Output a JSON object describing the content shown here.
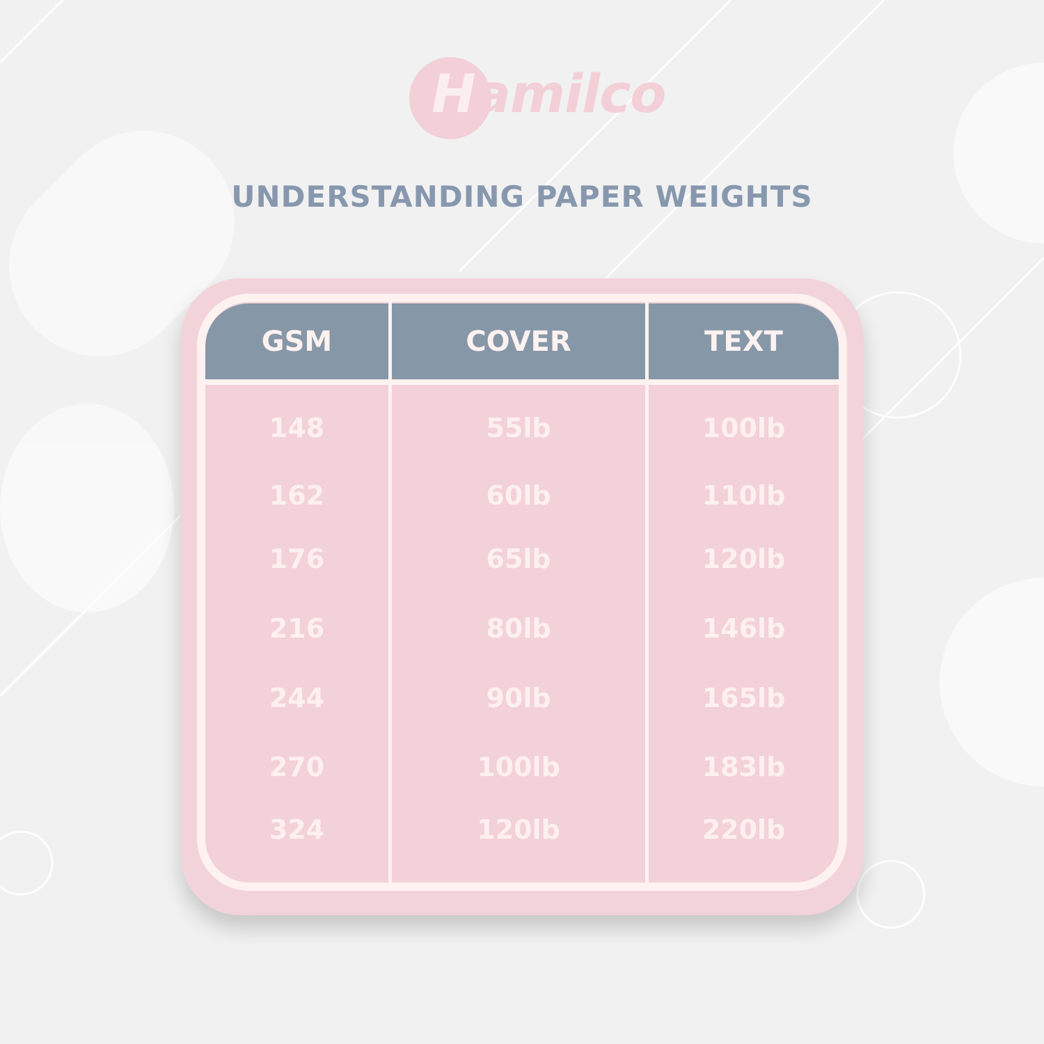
{
  "brand": {
    "logo_text": "Hamilco",
    "color": "#f3cfd7"
  },
  "title": "UNDERSTANDING PAPER WEIGHTS",
  "table": {
    "headers": [
      "GSM",
      "COVER",
      "TEXT"
    ],
    "rows": [
      [
        "148",
        "55lb",
        "100lb"
      ],
      [
        "162",
        "60lb",
        "110lb"
      ],
      [
        "176",
        "65lb",
        "120lb"
      ],
      [
        "216",
        "80lb",
        "146lb"
      ],
      [
        "244",
        "90lb",
        "165lb"
      ],
      [
        "270",
        "100lb",
        "183lb"
      ],
      [
        "324",
        "120lb",
        "220lb"
      ]
    ]
  },
  "colors": {
    "header": "#8697a8",
    "cell": "#f3d1d8",
    "card": "#f3d3da",
    "title": "#8798ae"
  }
}
